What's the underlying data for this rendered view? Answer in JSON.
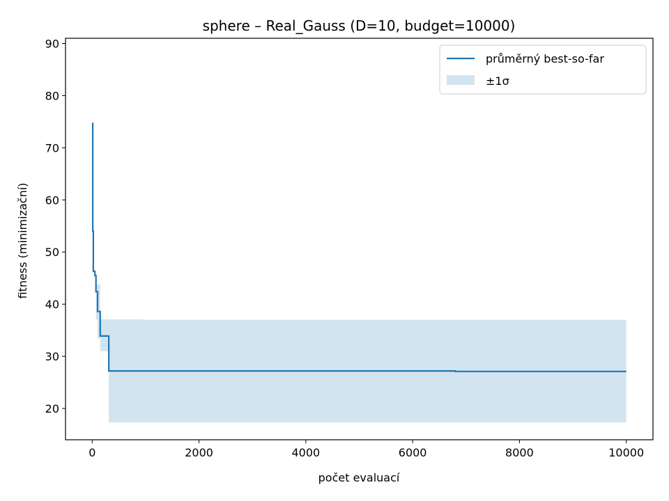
{
  "chart_data": {
    "type": "line",
    "title": "sphere – Real_Gauss (D=10, budget=10000)",
    "xlabel": "počet evaluací",
    "ylabel": "fitness (minimizační)",
    "xlim": [
      -500,
      10500
    ],
    "ylim": [
      14,
      91
    ],
    "xticks": [
      0,
      2000,
      4000,
      6000,
      8000,
      10000
    ],
    "yticks": [
      20,
      30,
      40,
      50,
      60,
      70,
      80,
      90
    ],
    "grid": false,
    "legend_position": "top-right",
    "colors": {
      "line": "#1f77b4",
      "band": "#1f77b4",
      "band_opacity": 0.2
    },
    "series": [
      {
        "name": "průměrný best-so-far",
        "style": "step",
        "x": [
          0,
          10,
          20,
          50,
          70,
          100,
          150,
          310,
          950,
          6800,
          10000
        ],
        "y": [
          74.7,
          54.0,
          46.3,
          45.5,
          42.4,
          38.6,
          33.9,
          27.2,
          27.2,
          27.1,
          27.1
        ]
      },
      {
        "name": "±1σ",
        "style": "band",
        "x": [
          0,
          10,
          20,
          50,
          70,
          100,
          150,
          310,
          950,
          6800,
          10000
        ],
        "lower": [
          74.7,
          54.0,
          46.3,
          45.5,
          37.0,
          33.4,
          31.0,
          17.3,
          17.3,
          17.3,
          17.3
        ],
        "upper": [
          74.7,
          54.0,
          46.3,
          45.5,
          43.8,
          43.8,
          37.1,
          37.1,
          37.0,
          37.0,
          37.0
        ]
      }
    ]
  }
}
